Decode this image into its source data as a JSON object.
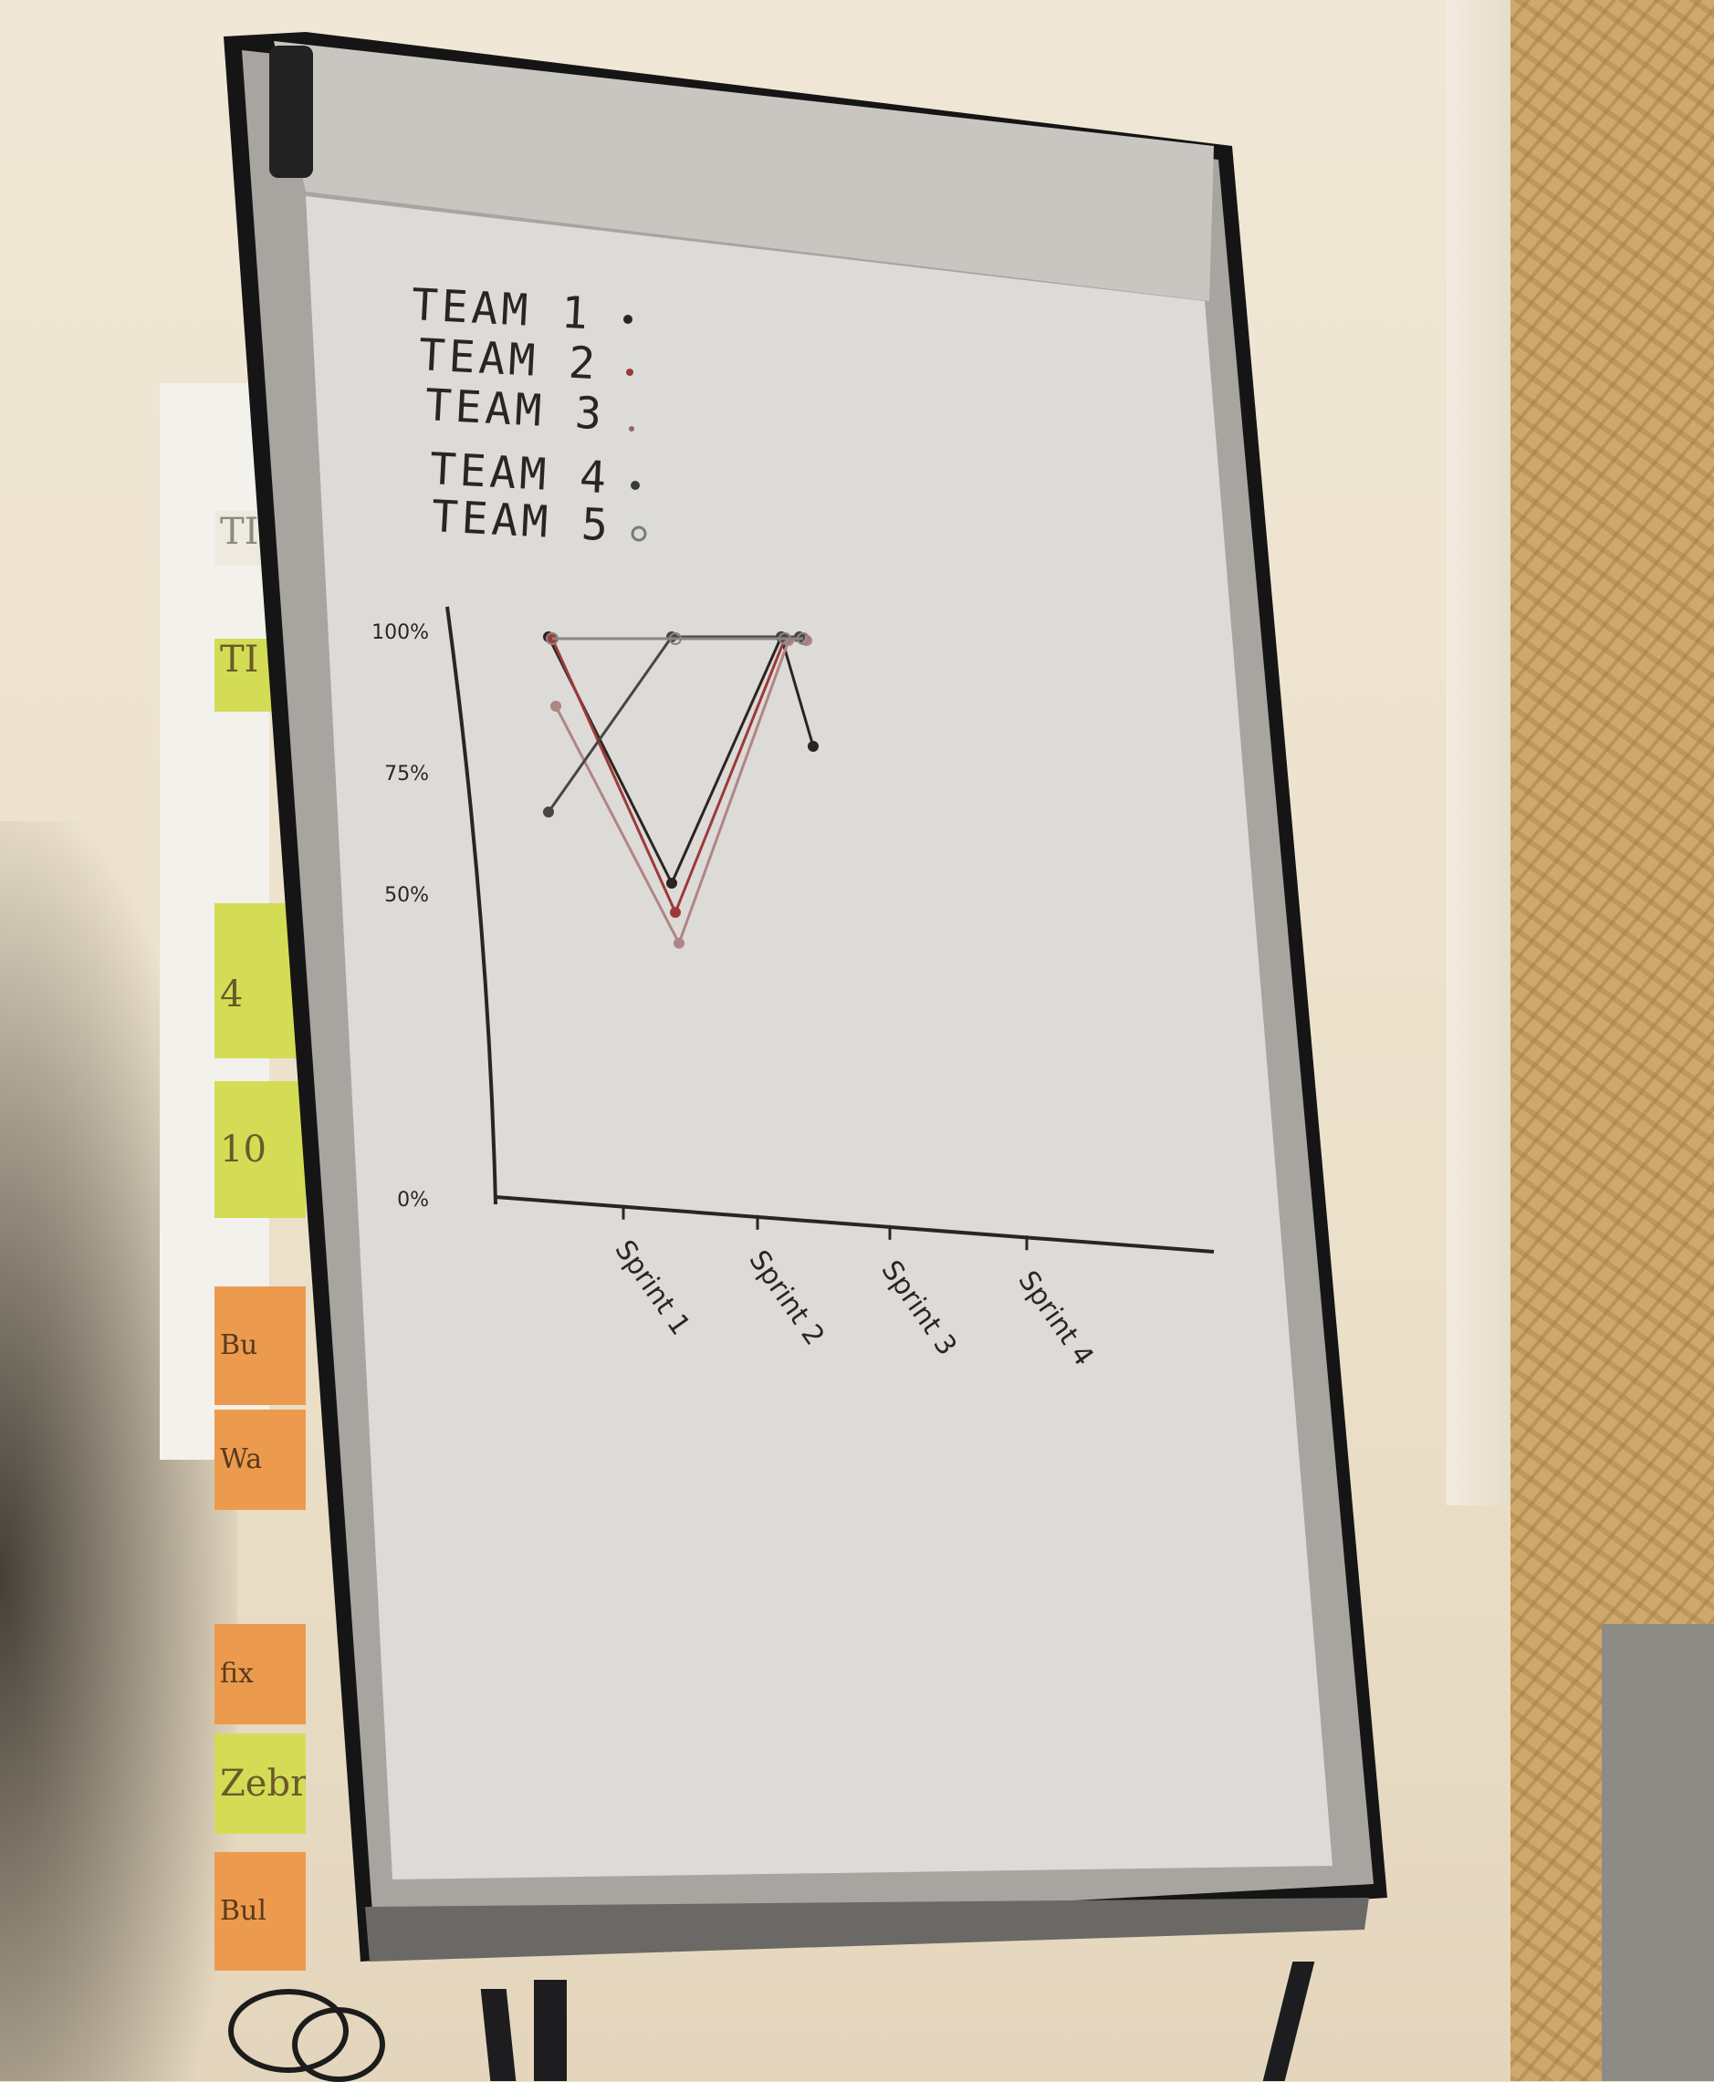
{
  "legend": {
    "items": [
      {
        "label": "TEAM 1",
        "marker": "filled-dot",
        "color": "#2b2521"
      },
      {
        "label": "TEAM 2",
        "marker": "filled-dot",
        "color": "#9c3a3a"
      },
      {
        "label": "TEAM 3",
        "marker": "small-dot",
        "color": "#8a6a6a"
      },
      {
        "label": "TEAM 4",
        "marker": "filled-dot",
        "color": "#3a3a3a"
      },
      {
        "label": "TEAM 5",
        "marker": "hollow-circle",
        "color": "#7a7a7a"
      }
    ]
  },
  "chart_data": {
    "type": "line",
    "categories": [
      "Sprint 1",
      "Sprint 2",
      "Sprint 3",
      "Sprint 4"
    ],
    "yticks": [
      "100%",
      "75%",
      "50%",
      "0%"
    ],
    "ylim": [
      0,
      100
    ],
    "series": [
      {
        "name": "TEAM 1",
        "values": [
          100,
          55,
          100,
          80
        ],
        "color": "#2b2521"
      },
      {
        "name": "TEAM 2",
        "values": [
          100,
          50,
          100,
          100
        ],
        "color": "#9c3a3a"
      },
      {
        "name": "TEAM 3",
        "values": [
          88,
          45,
          100,
          100
        ],
        "color": "#b08585"
      },
      {
        "name": "TEAM 4",
        "values": [
          68,
          100,
          100,
          100
        ],
        "color": "#4a4444"
      },
      {
        "name": "TEAM 5",
        "values": [
          100,
          100,
          100,
          100
        ],
        "color": "#8c8484"
      }
    ]
  },
  "sticky_notes": [
    {
      "text": "TI",
      "color": "white"
    },
    {
      "text": "TI",
      "color": "green"
    },
    {
      "text": "4",
      "color": "green"
    },
    {
      "text": "10",
      "color": "green"
    },
    {
      "text": "Bu",
      "color": "orange"
    },
    {
      "text": "Wa",
      "color": "orange"
    },
    {
      "text": "fix",
      "color": "orange"
    },
    {
      "text": "Zebr",
      "color": "green"
    },
    {
      "text": "Bul",
      "color": "orange"
    }
  ]
}
